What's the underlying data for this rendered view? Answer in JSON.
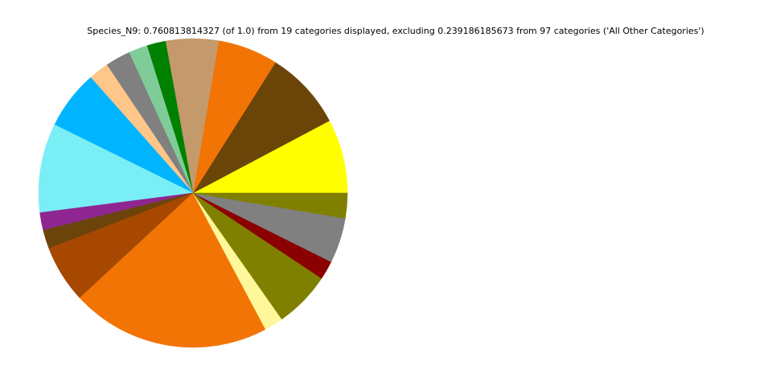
{
  "chart_data": {
    "type": "pie",
    "title": "Species_N9: 0.760813814327 (of 1.0) from 19 categories displayed, excluding 0.239186185673 from 97 categories ('All Other Categories')",
    "values": [
      0.059,
      0.063,
      0.048,
      0.042,
      0.015,
      0.015,
      0.02,
      0.016,
      0.047,
      0.071,
      0.014,
      0.015,
      0.046,
      0.159,
      0.015,
      0.045,
      0.015,
      0.036,
      0.02
    ],
    "colors": [
      "#ffff00",
      "#6b4408",
      "#f27405",
      "#c49a6c",
      "#008000",
      "#80cc99",
      "#808080",
      "#ffc68a",
      "#00b4ff",
      "#7aeef5",
      "#8e2691",
      "#6b440c",
      "#a64800",
      "#f27405",
      "#fff799",
      "#808000",
      "#8b0000",
      "#808080",
      "#808000"
    ]
  }
}
